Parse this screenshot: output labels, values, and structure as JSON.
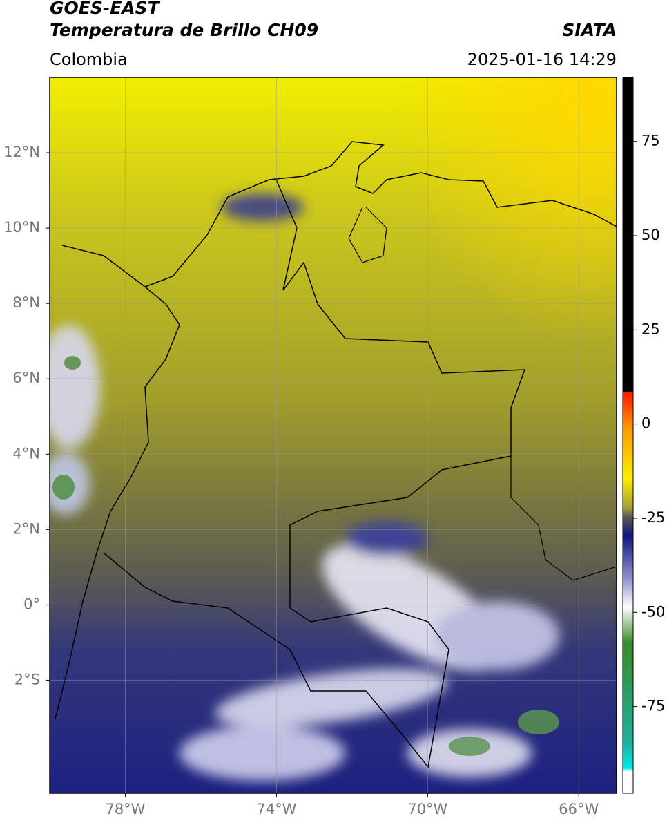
{
  "header": {
    "title_line1": "GOES-EAST",
    "title_line2": "Temperatura de Brillo CH09",
    "source": "SIATA",
    "region": "Colombia",
    "datetime": "2025-01-16 14:29"
  },
  "map": {
    "lonlim": [
      -80,
      -65
    ],
    "latlim": [
      -5,
      14
    ],
    "lon_ticks": [
      {
        "value": -78,
        "label": "78°W"
      },
      {
        "value": -74,
        "label": "74°W"
      },
      {
        "value": -70,
        "label": "70°W"
      },
      {
        "value": -66,
        "label": "66°W"
      }
    ],
    "lat_ticks": [
      {
        "value": 12,
        "label": "12°N"
      },
      {
        "value": 10,
        "label": "10°N"
      },
      {
        "value": 8,
        "label": "8°N"
      },
      {
        "value": 6,
        "label": "6°N"
      },
      {
        "value": 4,
        "label": "4°N"
      },
      {
        "value": 2,
        "label": "2°N"
      },
      {
        "value": 0,
        "label": "0°"
      },
      {
        "value": -2,
        "label": "2°S"
      }
    ],
    "grid": true
  },
  "colorbar": {
    "lim": [
      -98,
      92
    ],
    "ticks": [
      75,
      50,
      25,
      0,
      -25,
      -50,
      -75
    ]
  }
}
